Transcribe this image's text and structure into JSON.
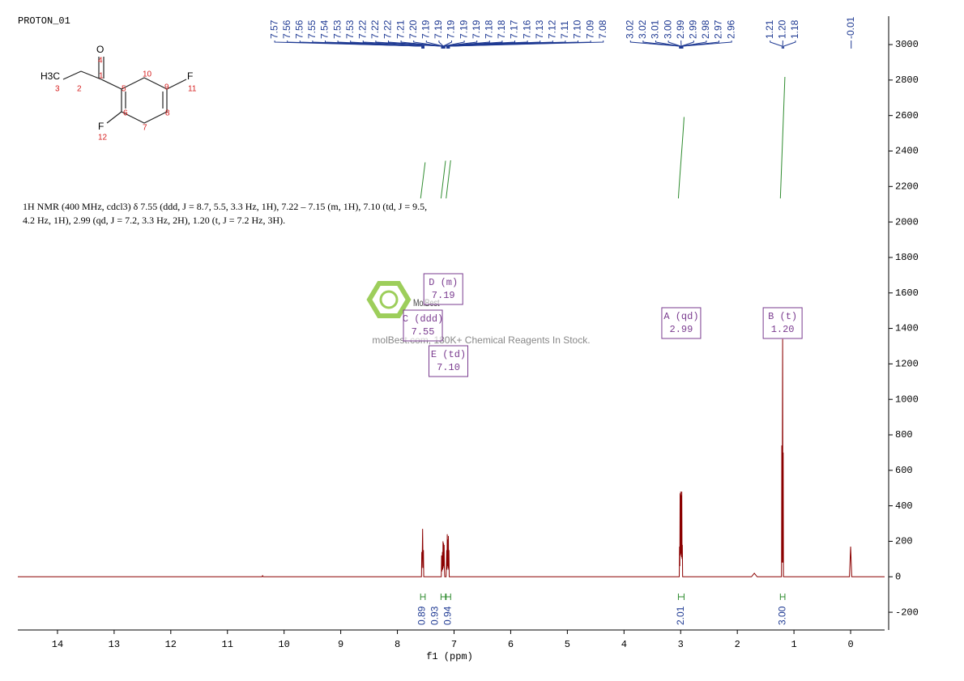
{
  "chart_data": {
    "type": "line",
    "title": "PROTON_01",
    "x_label": "f1 (ppm)",
    "color": "#8b0000",
    "x": [
      14.7,
      10.39,
      10.38,
      10.37,
      7.6,
      7.575,
      7.57,
      7.565,
      7.56,
      7.555,
      7.55,
      7.545,
      7.54,
      7.535,
      7.25,
      7.225,
      7.22,
      7.215,
      7.205,
      7.2,
      7.195,
      7.19,
      7.185,
      7.18,
      7.175,
      7.17,
      7.165,
      7.14,
      7.13,
      7.125,
      7.12,
      7.115,
      7.11,
      7.105,
      7.1,
      7.095,
      7.09,
      7.085,
      7.06,
      3.04,
      3.025,
      3.02,
      3.015,
      3.01,
      3.005,
      3.0,
      2.995,
      2.99,
      2.985,
      2.98,
      2.975,
      2.97,
      2.965,
      2.94,
      1.75,
      1.7,
      1.65,
      1.24,
      1.22,
      1.215,
      1.21,
      1.2,
      1.195,
      1.19,
      1.185,
      1.16,
      0.02,
      0.0,
      -0.02,
      -0.6
    ],
    "values": [
      0,
      0,
      6,
      0,
      0,
      0,
      140,
      50,
      150,
      270,
      140,
      50,
      150,
      0,
      0,
      0,
      120,
      30,
      140,
      40,
      200,
      60,
      190,
      50,
      180,
      40,
      0,
      0,
      150,
      40,
      240,
      60,
      210,
      50,
      230,
      40,
      150,
      0,
      0,
      0,
      0,
      170,
      60,
      470,
      120,
      480,
      130,
      460,
      110,
      480,
      100,
      180,
      0,
      0,
      0,
      20,
      0,
      0,
      0,
      740,
      80,
      1340,
      80,
      700,
      0,
      0,
      0,
      170,
      0,
      0
    ],
    "xlim": [
      14.7,
      -0.6
    ],
    "ylim": [
      -300,
      3160
    ],
    "xticks": [
      14,
      13,
      12,
      11,
      10,
      9,
      8,
      7,
      6,
      5,
      4,
      3,
      2,
      1,
      0
    ],
    "yticks": [
      -200,
      0,
      200,
      400,
      600,
      800,
      1000,
      1200,
      1400,
      1600,
      1800,
      2000,
      2200,
      2400,
      2600,
      2800,
      3000
    ],
    "peak_label_groups": [
      [
        "7.57",
        "7.56",
        "7.56",
        "7.55",
        "7.54",
        "7.53",
        "7.53",
        "7.22",
        "7.22",
        "7.22",
        "7.21",
        "7.20",
        "7.19",
        "7.19",
        "7.19",
        "7.19",
        "7.19",
        "7.18",
        "7.18",
        "7.17",
        "7.16",
        "7.13",
        "7.12",
        "7.11",
        "7.10",
        "7.09",
        "7.08"
      ],
      [
        "3.02",
        "3.02",
        "3.01",
        "3.00",
        "2.99",
        "2.99",
        "2.98",
        "2.97",
        "2.96"
      ],
      [
        "1.21",
        "1.20",
        "1.18"
      ],
      [
        "-0.01"
      ]
    ],
    "multiplets": [
      {
        "name": "A (qd)",
        "shift": "2.99"
      },
      {
        "name": "B (t)",
        "shift": "1.20"
      },
      {
        "name": "C (ddd)",
        "shift": "7.55"
      },
      {
        "name": "D (m)",
        "shift": "7.19"
      },
      {
        "name": "E (td)",
        "shift": "7.10"
      }
    ],
    "integrals": [
      {
        "label": "0.89",
        "from": 7.59,
        "to": 7.51
      },
      {
        "label": "0.93",
        "from": 7.23,
        "to": 7.15
      },
      {
        "label": "0.94",
        "from": 7.14,
        "to": 7.06
      },
      {
        "label": "2.01",
        "from": 3.04,
        "to": 2.94
      },
      {
        "label": "3.00",
        "from": 1.24,
        "to": 1.16
      }
    ],
    "description": [
      "1H NMR (400 MHz, cdcl3) δ 7.55 (ddd, J = 8.7, 5.5, 3.3 Hz, 1H), 7.22 – 7.15 (m, 1H), 7.10 (td, J = 9.5,",
      "4.2 Hz, 1H), 2.99 (qd, J = 7.2, 3.3 Hz, 2H), 1.20 (t, J = 7.2 Hz, 3H)."
    ],
    "watermark": {
      "brand": "MolBest",
      "slogan": "molBest.com, 180K+ Chemical Reagents In Stock."
    },
    "structure": {
      "atoms": [
        "O",
        "4",
        "H3C",
        "3",
        "2",
        "1",
        "5",
        "10",
        "9",
        "F",
        "11",
        "6",
        "8",
        "7",
        "F",
        "12"
      ]
    }
  }
}
